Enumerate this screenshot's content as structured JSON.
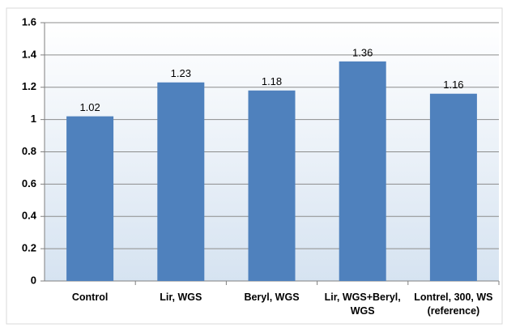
{
  "chart_data": {
    "type": "bar",
    "categories": [
      "Control",
      "Lir, WGS",
      "Beryl, WGS",
      "Lir, WGS+Beryl, WGS",
      "Lontrel, 300, WS (reference)"
    ],
    "values": [
      1.02,
      1.23,
      1.18,
      1.36,
      1.16
    ],
    "color": "#4f81bd",
    "ylim": [
      0,
      1.6
    ],
    "yticks": [
      0,
      0.2,
      0.4,
      0.6,
      0.8,
      1,
      1.2,
      1.4,
      1.6
    ],
    "grid": true
  }
}
